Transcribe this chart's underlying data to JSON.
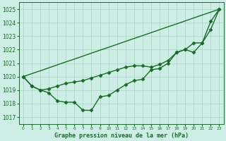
{
  "title": "Graphe pression niveau de la mer (hPa)",
  "bg_color": "#cceee4",
  "line_color": "#1a6b2a",
  "grid_color": "#a8d4c4",
  "ylim": [
    1016.5,
    1025.5
  ],
  "xlim": [
    -0.5,
    23.5
  ],
  "yticks": [
    1017,
    1018,
    1019,
    1020,
    1021,
    1022,
    1023,
    1024,
    1025
  ],
  "xticks": [
    0,
    1,
    2,
    3,
    4,
    5,
    6,
    7,
    8,
    9,
    10,
    11,
    12,
    13,
    14,
    15,
    16,
    17,
    18,
    19,
    20,
    21,
    22,
    23
  ],
  "line1": [
    1020.0,
    1019.3,
    1019.0,
    1018.8,
    1018.2,
    1018.1,
    1018.1,
    1017.5,
    1017.5,
    1018.5,
    1018.6,
    1019.0,
    1019.4,
    1019.7,
    1019.8,
    1020.5,
    1020.6,
    1021.0,
    1021.8,
    1022.0,
    1021.8,
    1022.5,
    1024.1,
    1025.0
  ],
  "line2": [
    1020.0,
    1019.3,
    1019.0,
    1019.1,
    1019.3,
    1019.5,
    1019.6,
    1019.7,
    1019.9,
    1020.1,
    1020.3,
    1020.5,
    1020.7,
    1020.8,
    1020.8,
    1020.7,
    1020.9,
    1021.2,
    1021.8,
    1022.0,
    1022.5,
    1022.5,
    1023.5,
    1025.0
  ],
  "line3": [
    1020.0,
    1020.22,
    1020.43,
    1020.65,
    1020.87,
    1021.09,
    1021.3,
    1021.52,
    1021.74,
    1021.96,
    1022.17,
    1022.39,
    1022.61,
    1022.83,
    1023.04,
    1023.26,
    1023.48,
    1023.7,
    1023.91,
    1024.13,
    1024.35,
    1024.57,
    1024.78,
    1025.0
  ],
  "marker": "D",
  "markersize": 2.5,
  "linewidth": 1.0,
  "ytick_fontsize": 5.5,
  "xtick_fontsize": 4.2,
  "xlabel_fontsize": 6.0
}
